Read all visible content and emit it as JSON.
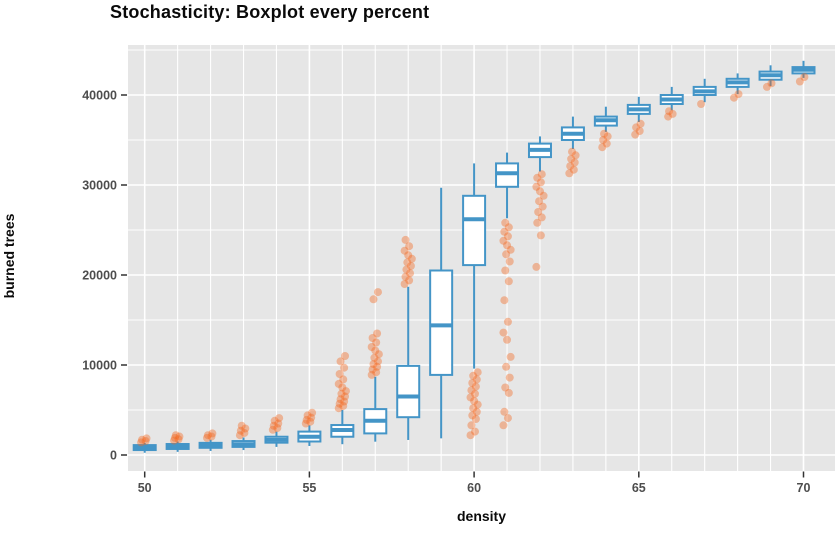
{
  "chart_data": {
    "type": "boxplot",
    "title": "Stochasticity: Boxplot every percent",
    "xlabel": "density",
    "ylabel": "burned trees",
    "x_ticks": [
      50,
      55,
      60,
      65,
      70
    ],
    "x_tick_labels": [
      "50",
      "55",
      "60",
      "65",
      "70"
    ],
    "y_ticks": [
      0,
      10000,
      20000,
      30000,
      40000
    ],
    "y_tick_labels": [
      "0",
      "10000",
      "20000",
      "30000",
      "40000"
    ],
    "y_minor_ticks": [
      5000,
      15000,
      25000,
      35000,
      45000
    ],
    "xlim": [
      49.5,
      70.95
    ],
    "ylim": [
      -1800,
      45500
    ],
    "grid": {
      "vertical_every_unit": true,
      "legend": "none"
    },
    "colors": {
      "panel_bg": "#e6e6e6",
      "grid": "#ffffff",
      "box_stroke": "#4495c7",
      "box_fill": "#ffffff",
      "outlier": "#f3671e",
      "tick_text": "#4d4d4d",
      "tick_mark": "#333333",
      "title_text": "#0a0a0a"
    },
    "boxes": [
      {
        "x": 50,
        "low": 250,
        "q1": 550,
        "median": 800,
        "q3": 1100,
        "high": 1350,
        "outliers": [
          1400,
          1550,
          1700,
          1850
        ]
      },
      {
        "x": 51,
        "low": 350,
        "q1": 670,
        "median": 950,
        "q3": 1220,
        "high": 1500,
        "outliers": [
          1600,
          1750,
          1900,
          2050,
          2200
        ]
      },
      {
        "x": 52,
        "low": 450,
        "q1": 800,
        "median": 1080,
        "q3": 1350,
        "high": 1700,
        "outliers": [
          1900,
          2050,
          2200,
          2400
        ]
      },
      {
        "x": 53,
        "low": 550,
        "q1": 900,
        "median": 1200,
        "q3": 1550,
        "high": 1950,
        "outliers": [
          2200,
          2450,
          2700,
          2950,
          3250
        ]
      },
      {
        "x": 54,
        "low": 900,
        "q1": 1370,
        "median": 1680,
        "q3": 2030,
        "high": 2600,
        "outliers": [
          2800,
          3000,
          3250,
          3500,
          3800,
          4100
        ]
      },
      {
        "x": 55,
        "low": 1000,
        "q1": 1500,
        "median": 2030,
        "q3": 2600,
        "high": 3300,
        "outliers": [
          3500,
          3700,
          3900,
          4150,
          4400,
          4700
        ]
      },
      {
        "x": 56,
        "low": 1200,
        "q1": 2030,
        "median": 2780,
        "q3": 3330,
        "high": 5000,
        "outliers": [
          5200,
          5450,
          5700,
          5950,
          6200,
          6500,
          6800,
          7100,
          7500,
          7900,
          8400,
          9000,
          9700,
          10400,
          11000
        ]
      },
      {
        "x": 57,
        "low": 1480,
        "q1": 2400,
        "median": 3800,
        "q3": 5100,
        "high": 8700,
        "outliers": [
          8900,
          9200,
          9500,
          9800,
          10100,
          10400,
          10800,
          11200,
          11600,
          12000,
          12500,
          13000,
          13500,
          17300,
          18100
        ]
      },
      {
        "x": 58,
        "low": 1670,
        "q1": 4200,
        "median": 6500,
        "q3": 9900,
        "high": 18700,
        "outliers": [
          19000,
          19400,
          19800,
          20200,
          20600,
          21000,
          21400,
          21800,
          22200,
          22700,
          23200,
          23900
        ]
      },
      {
        "x": 59,
        "low": 1850,
        "q1": 8900,
        "median": 14400,
        "q3": 20500,
        "high": 29700,
        "outliers": []
      },
      {
        "x": 60,
        "low": 9600,
        "q1": 21100,
        "median": 26200,
        "q3": 28800,
        "high": 32400,
        "outliers": [
          2200,
          2600,
          3300,
          4000,
          4400,
          4800,
          5200,
          5600,
          6000,
          6400,
          6800,
          7200,
          7600,
          8000,
          8400,
          8800,
          9200
        ]
      },
      {
        "x": 61,
        "low": 26300,
        "q1": 29800,
        "median": 31300,
        "q3": 32400,
        "high": 33600,
        "outliers": [
          3300,
          4100,
          4800,
          6900,
          7500,
          8600,
          9800,
          10900,
          12800,
          13600,
          14800,
          17200,
          19300,
          20500,
          21500,
          22300,
          22800,
          23300,
          23800,
          24300,
          24800,
          25300,
          25800
        ]
      },
      {
        "x": 62,
        "low": 31500,
        "q1": 33100,
        "median": 33900,
        "q3": 34600,
        "high": 35400,
        "outliers": [
          20900,
          24400,
          25800,
          26400,
          27000,
          27600,
          28200,
          28800,
          29300,
          29800,
          30300,
          30800,
          31200
        ]
      },
      {
        "x": 63,
        "low": 34000,
        "q1": 35000,
        "median": 35700,
        "q3": 36400,
        "high": 37600,
        "outliers": [
          31300,
          31700,
          32100,
          32500,
          32900,
          33300,
          33700
        ]
      },
      {
        "x": 64,
        "low": 35900,
        "q1": 36600,
        "median": 37200,
        "q3": 37600,
        "high": 38700,
        "outliers": [
          34200,
          34600,
          35000,
          35400,
          35700
        ]
      },
      {
        "x": 65,
        "low": 37000,
        "q1": 37900,
        "median": 38400,
        "q3": 38900,
        "high": 39800,
        "outliers": [
          35600,
          36000,
          36400,
          36800
        ]
      },
      {
        "x": 66,
        "low": 38300,
        "q1": 39000,
        "median": 39500,
        "q3": 40000,
        "high": 40900,
        "outliers": [
          37600,
          37900,
          38200
        ]
      },
      {
        "x": 67,
        "low": 39200,
        "q1": 40000,
        "median": 40400,
        "q3": 40900,
        "high": 41800,
        "outliers": [
          39000
        ]
      },
      {
        "x": 68,
        "low": 40100,
        "q1": 40900,
        "median": 41400,
        "q3": 41800,
        "high": 42400,
        "outliers": [
          39700,
          40100
        ]
      },
      {
        "x": 69,
        "low": 41000,
        "q1": 41700,
        "median": 42200,
        "q3": 42600,
        "high": 43300,
        "outliers": [
          40900,
          41300
        ]
      },
      {
        "x": 70,
        "low": 41900,
        "q1": 42400,
        "median": 42800,
        "q3": 43100,
        "high": 43800,
        "outliers": [
          41500,
          42000
        ]
      }
    ]
  }
}
